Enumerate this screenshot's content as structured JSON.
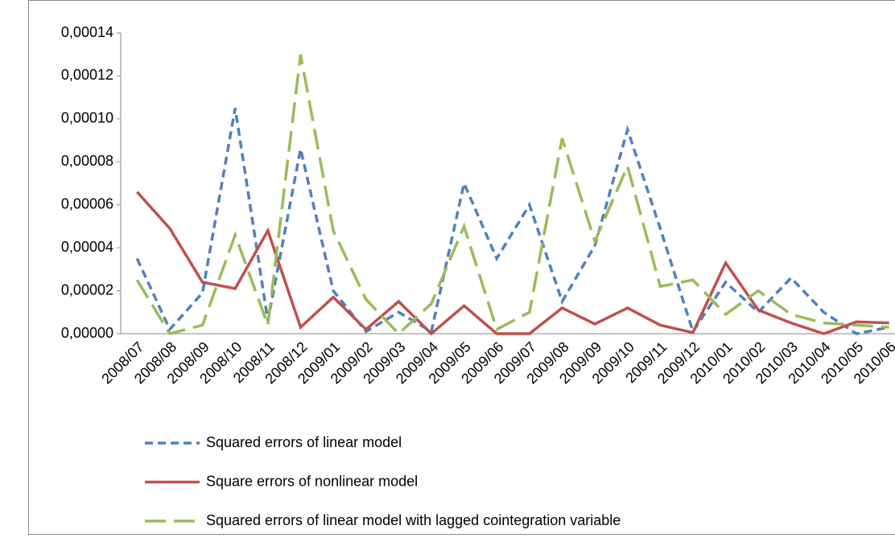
{
  "chart_data": {
    "type": "line",
    "categories": [
      "2008/07",
      "2008/08",
      "2008/09",
      "2008/10",
      "2008/11",
      "2008/12",
      "2009/01",
      "2009/02",
      "2009/03",
      "2009/04",
      "2009/05",
      "2009/06",
      "2009/07",
      "2009/08",
      "2009/09",
      "2009/10",
      "2009/11",
      "2009/12",
      "2010/01",
      "2010/02",
      "2010/03",
      "2010/04",
      "2010/05",
      "2010/06"
    ],
    "series": [
      {
        "name": "Squared errors of linear model",
        "color": "#4f81bd",
        "dash": "10 6",
        "values": [
          3.5e-05,
          2e-06,
          1.9e-05,
          0.000105,
          6e-06,
          8.6e-05,
          2e-05,
          1e-06,
          1e-05,
          1e-06,
          7e-05,
          3.5e-05,
          6e-05,
          1.5e-05,
          4.1e-05,
          9.5e-05,
          4.9e-05,
          1e-06,
          2.4e-05,
          1e-05,
          2.6e-05,
          1e-05,
          0,
          3e-06
        ]
      },
      {
        "name": "Square errors of nonlinear model",
        "color": "#c0504d",
        "dash": "none",
        "values": [
          6.6e-05,
          4.9e-05,
          2.4e-05,
          2.1e-05,
          4.8e-05,
          3e-06,
          1.7e-05,
          2e-06,
          1.5e-05,
          0,
          1.3e-05,
          0,
          0,
          1.2e-05,
          4.5e-06,
          1.2e-05,
          4e-06,
          5e-07,
          3.3e-05,
          1.1e-05,
          5e-06,
          0,
          5.5e-06,
          5e-06
        ]
      },
      {
        "name": "Squared errors of linear model with lagged cointegration variable",
        "color": "#9bbb59",
        "dash": "26 10",
        "values": [
          2.5e-05,
          0,
          4e-06,
          4.6e-05,
          4e-06,
          0.00013,
          4.8e-05,
          1.6e-05,
          0,
          1.4e-05,
          5e-05,
          2e-06,
          1e-05,
          9.1e-05,
          4.3e-05,
          7.8e-05,
          2.2e-05,
          2.5e-05,
          9e-06,
          2e-05,
          9e-06,
          5e-06,
          4e-06,
          3e-06
        ]
      }
    ],
    "ylim": [
      0,
      0.00014
    ],
    "yticks": [
      {
        "value": 0,
        "label": "0,00000"
      },
      {
        "value": 2e-05,
        "label": "0,00002"
      },
      {
        "value": 4e-05,
        "label": "0,00004"
      },
      {
        "value": 6e-05,
        "label": "0,00006"
      },
      {
        "value": 8e-05,
        "label": "0,00008"
      },
      {
        "value": 0.0001,
        "label": "0,00010"
      },
      {
        "value": 0.00012,
        "label": "0,00012"
      },
      {
        "value": 0.00014,
        "label": "0,00014"
      }
    ]
  }
}
